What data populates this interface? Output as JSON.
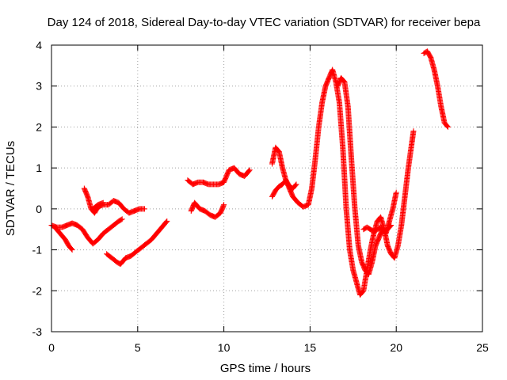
{
  "chart_data": {
    "type": "scatter",
    "title": "Day 124 of 2018, Sidereal Day-to-day VTEC variation (SDTVAR) for receiver bepa",
    "xlabel": "GPS time / hours",
    "ylabel": "SDTVAR / TECUs",
    "xlim": [
      0,
      25
    ],
    "ylim": [
      -3,
      4
    ],
    "xticks": [
      "0",
      "5",
      "10",
      "15",
      "20",
      "25"
    ],
    "yticks": [
      "-3",
      "-2",
      "-1",
      "0",
      "1",
      "2",
      "3",
      "4"
    ],
    "grid": true,
    "marker": "+",
    "color": "#ff0000",
    "series": [
      {
        "x": [
          0.0,
          0.3,
          0.6,
          0.9,
          1.2,
          1.5,
          1.8,
          2.1,
          2.4,
          2.7,
          3.0,
          3.3,
          3.6,
          3.9,
          4.1
        ],
        "y": [
          -0.4,
          -0.45,
          -0.45,
          -0.4,
          -0.35,
          -0.4,
          -0.5,
          -0.7,
          -0.85,
          -0.75,
          -0.6,
          -0.5,
          -0.4,
          -0.3,
          -0.25
        ]
      },
      {
        "x": [
          0.2,
          0.5,
          0.8,
          1.0,
          1.2
        ],
        "y": [
          -0.45,
          -0.6,
          -0.75,
          -0.9,
          -1.0
        ]
      },
      {
        "x": [
          1.9,
          2.1,
          2.3,
          2.5,
          2.7,
          3.0,
          3.3,
          3.6,
          3.9,
          4.2,
          4.5,
          4.8,
          5.1,
          5.4
        ],
        "y": [
          0.5,
          0.3,
          0.0,
          -0.1,
          0.05,
          0.1,
          0.1,
          0.2,
          0.15,
          0.0,
          -0.1,
          -0.05,
          0.0,
          0.0
        ]
      },
      {
        "x": [
          2.4,
          2.7,
          3.0
        ],
        "y": [
          0.0,
          0.1,
          0.15
        ]
      },
      {
        "x": [
          3.2,
          3.5,
          3.8,
          4.0,
          4.3,
          4.6,
          4.9,
          5.2,
          5.5,
          5.8,
          6.1,
          6.4,
          6.7
        ],
        "y": [
          -1.1,
          -1.2,
          -1.3,
          -1.35,
          -1.2,
          -1.15,
          -1.05,
          -0.95,
          -0.85,
          -0.75,
          -0.6,
          -0.45,
          -0.3
        ]
      },
      {
        "x": [
          7.9,
          8.2,
          8.5,
          8.8,
          9.1,
          9.4,
          9.7,
          10.0,
          10.3,
          10.6,
          10.9,
          11.2,
          11.5
        ],
        "y": [
          0.7,
          0.6,
          0.65,
          0.65,
          0.6,
          0.6,
          0.6,
          0.65,
          0.95,
          1.0,
          0.85,
          0.8,
          0.95
        ]
      },
      {
        "x": [
          8.1,
          8.3,
          8.6,
          8.9,
          9.2,
          9.5,
          9.8,
          10.0
        ],
        "y": [
          -0.05,
          0.15,
          0.0,
          -0.05,
          -0.15,
          -0.2,
          -0.1,
          0.1
        ]
      },
      {
        "x": [
          12.8,
          13.0,
          13.2,
          13.4,
          13.6,
          13.8,
          14.0,
          14.3,
          14.6,
          14.9,
          15.1,
          15.3,
          15.5,
          15.7,
          15.9,
          16.1,
          16.3,
          16.5,
          16.7,
          16.9,
          17.1,
          17.3,
          17.5,
          17.7,
          17.9,
          18.1,
          18.3,
          18.5,
          18.7,
          18.9,
          19.1,
          19.3,
          19.5,
          19.7,
          19.9,
          20.1,
          20.3,
          20.5,
          20.7,
          20.9,
          21.0
        ],
        "y": [
          1.1,
          1.5,
          1.4,
          1.0,
          0.7,
          0.5,
          0.3,
          0.15,
          0.05,
          0.1,
          0.5,
          1.2,
          2.0,
          2.6,
          3.0,
          3.2,
          3.4,
          3.1,
          2.6,
          1.5,
          0.0,
          -1.0,
          -1.5,
          -1.8,
          -2.1,
          -2.0,
          -1.5,
          -1.0,
          -0.6,
          -0.3,
          -0.2,
          -0.5,
          -0.9,
          -1.1,
          -1.2,
          -0.9,
          -0.4,
          0.3,
          1.0,
          1.6,
          1.9
        ]
      },
      {
        "x": [
          12.8,
          13.0,
          13.2,
          13.4,
          13.6,
          13.8,
          14.0,
          14.2
        ],
        "y": [
          0.3,
          0.45,
          0.55,
          0.6,
          0.7,
          0.55,
          0.5,
          0.6
        ]
      },
      {
        "x": [
          16.6,
          16.8,
          17.0,
          17.2,
          17.4,
          17.6,
          17.8,
          18.0,
          18.2,
          18.4,
          18.6,
          18.8,
          19.0,
          19.2,
          19.4,
          19.6,
          19.8,
          20.0
        ],
        "y": [
          3.0,
          3.2,
          3.1,
          2.5,
          1.2,
          0.0,
          -0.9,
          -1.3,
          -1.5,
          -1.6,
          -1.3,
          -0.9,
          -0.7,
          -0.5,
          -0.6,
          -0.3,
          0.0,
          0.4
        ]
      },
      {
        "x": [
          18.1,
          18.3,
          18.5,
          18.7,
          18.9,
          19.1,
          19.3,
          19.5,
          19.7
        ],
        "y": [
          -0.5,
          -0.45,
          -0.5,
          -0.55,
          -0.5,
          -0.45,
          -0.55,
          -0.5,
          -0.4
        ]
      },
      {
        "x": [
          21.6,
          21.8,
          22.0,
          22.2,
          22.4,
          22.6,
          22.8,
          23.0
        ],
        "y": [
          3.8,
          3.85,
          3.7,
          3.4,
          3.0,
          2.5,
          2.1,
          2.0
        ]
      }
    ]
  }
}
